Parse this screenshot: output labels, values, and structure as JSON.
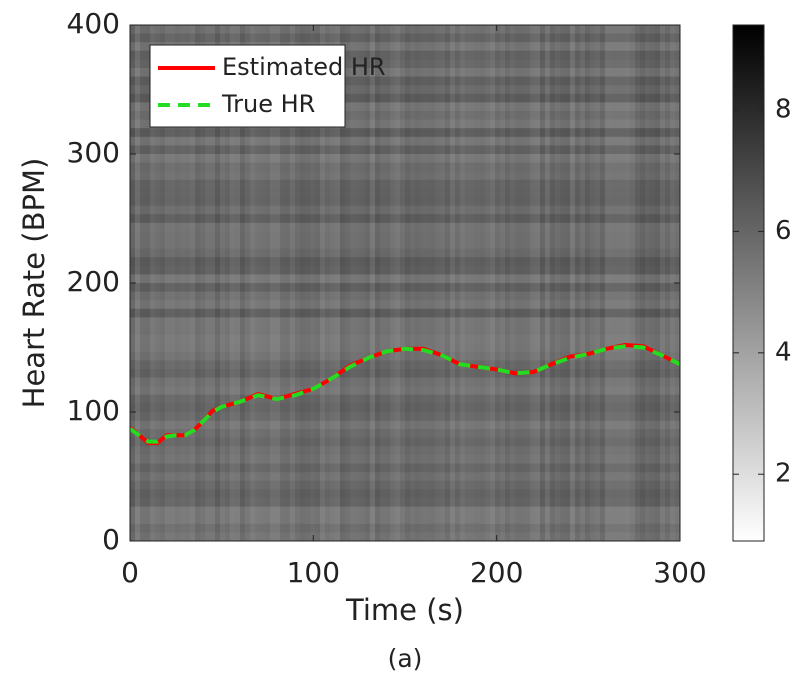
{
  "chart_data": {
    "type": "line",
    "x": [
      0,
      5,
      10,
      15,
      20,
      25,
      30,
      35,
      40,
      45,
      50,
      60,
      70,
      80,
      90,
      100,
      110,
      120,
      130,
      140,
      150,
      160,
      170,
      180,
      190,
      200,
      210,
      220,
      230,
      240,
      250,
      260,
      270,
      280,
      290,
      300
    ],
    "series": [
      {
        "name": "Estimated HR",
        "color": "#ff0000",
        "dashed": false,
        "values": [
          88,
          82,
          76,
          76,
          82,
          82,
          82,
          86,
          93,
          101,
          104,
          108,
          114,
          110,
          114,
          118,
          126,
          136,
          142,
          147,
          149,
          149,
          144,
          137,
          135,
          133,
          130,
          131,
          137,
          143,
          145,
          149,
          152,
          151,
          144,
          137
        ]
      },
      {
        "name": "True HR",
        "color": "#22dd22",
        "dashed": true,
        "values": [
          87,
          82,
          77,
          77,
          81,
          82,
          82,
          86,
          93,
          100,
          104,
          108,
          113,
          110,
          113,
          118,
          126,
          135,
          142,
          147,
          149,
          148,
          144,
          137,
          135,
          133,
          130,
          131,
          137,
          142,
          145,
          149,
          151,
          150,
          144,
          137
        ]
      }
    ],
    "xlim": [
      0,
      300
    ],
    "xticks": [
      0,
      100,
      200,
      300
    ],
    "ylim": [
      0,
      400
    ],
    "yticks": [
      0,
      100,
      200,
      300,
      400
    ],
    "xlabel": "Time (s)",
    "ylabel": "Heart Rate (BPM)",
    "caption": "(a)",
    "legend": "upper-left",
    "colorbar": {
      "lim": [
        0.9,
        9.4
      ],
      "ticks": [
        2,
        4,
        6,
        8
      ]
    }
  }
}
